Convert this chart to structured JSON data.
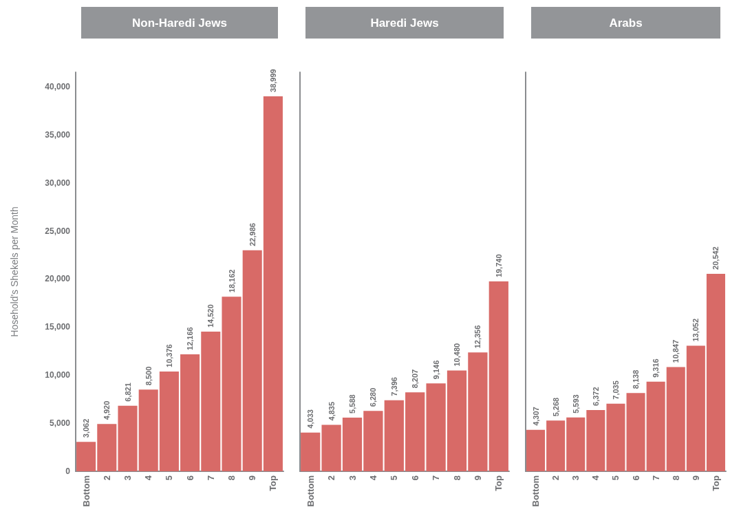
{
  "chart_data": [
    {
      "type": "bar",
      "title": "Non-Haredi Jews",
      "ylabel": "Hosehold's Shekels per Month",
      "categories": [
        "Bottom",
        "2",
        "3",
        "4",
        "5",
        "6",
        "7",
        "8",
        "9",
        "Top"
      ],
      "values": [
        3062,
        4920,
        6821,
        8500,
        10376,
        12166,
        14520,
        18162,
        22986,
        38999
      ],
      "value_labels": [
        "3,062",
        "4,920",
        "6,821",
        "8,500",
        "10,376",
        "12,166",
        "14,520",
        "18,162",
        "22,986",
        "38,999"
      ],
      "color": "#d86a67",
      "ylim": [
        0,
        41500
      ],
      "yticks": [
        0,
        {
          "value": 5000,
          "label": "5,000"
        },
        {
          "value": 10000,
          "label": "10,000"
        },
        {
          "value": 15000,
          "label": "15,000"
        },
        {
          "value": 20000,
          "label": "20,000"
        },
        {
          "value": 25000,
          "label": "25,000"
        },
        {
          "value": 30000,
          "label": "30,000"
        },
        {
          "value": 35000,
          "label": "35,000"
        },
        {
          "value": 40000,
          "label": "40,000"
        }
      ],
      "grid": false
    },
    {
      "type": "bar",
      "title": "Haredi Jews",
      "categories": [
        "Bottom",
        "2",
        "3",
        "4",
        "5",
        "6",
        "7",
        "8",
        "9",
        "Top"
      ],
      "values": [
        4033,
        4835,
        5588,
        6280,
        7396,
        8207,
        9146,
        10480,
        12356,
        19740
      ],
      "value_labels": [
        "4,033",
        "4,835",
        "5,588",
        "6,280",
        "7,396",
        "8,207",
        "9,146",
        "10,480",
        "12,356",
        "19,740"
      ],
      "color": "#d86a67",
      "ylim": [
        0,
        41500
      ],
      "grid": false,
      "tick_labels": "x"
    },
    {
      "type": "bar",
      "title": "Arabs",
      "categories": [
        "Bottom",
        "2",
        "3",
        "4",
        "5",
        "6",
        "7",
        "8",
        "9",
        "Top"
      ],
      "values": [
        4307,
        5268,
        5593,
        6372,
        7035,
        8138,
        9316,
        10847,
        13052,
        20542
      ],
      "value_labels": [
        "4,307",
        "5,268",
        "5,593",
        "6,372",
        "7,035",
        "8,138",
        "9,316",
        "10,847",
        "13,052",
        "20,542"
      ],
      "color": "#d86a67",
      "ylim": [
        0,
        41500
      ],
      "grid": false,
      "tick_labels": "x"
    }
  ]
}
